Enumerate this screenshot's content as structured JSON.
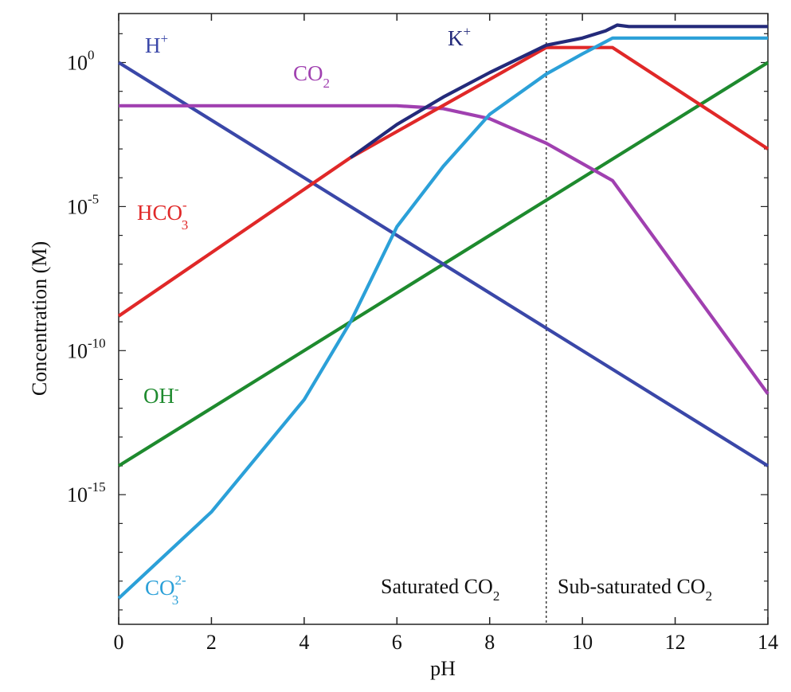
{
  "chart_data": {
    "type": "line",
    "title": "",
    "xlabel": "pH",
    "ylabel": "Concentration (M)",
    "xlim": [
      0,
      14
    ],
    "ylim_log10": [
      -19.5,
      1.7
    ],
    "y_scale": "log",
    "grid": false,
    "x_ticks": [
      0,
      2,
      4,
      6,
      8,
      10,
      12,
      14
    ],
    "x_tick_labels": [
      "0",
      "2",
      "4",
      "6",
      "8",
      "10",
      "12",
      "14"
    ],
    "y_ticks": [
      {
        "exp": 0,
        "base": "10",
        "sup": "0"
      },
      {
        "exp": -5,
        "base": "10",
        "sup": "-5"
      },
      {
        "exp": -10,
        "base": "10",
        "sup": "-10"
      },
      {
        "exp": -15,
        "base": "10",
        "sup": "-15"
      }
    ],
    "divider_pH": 9.22,
    "regions": [
      {
        "base": "Saturated CO",
        "sub": "2"
      },
      {
        "base": "Sub-saturated CO",
        "sub": "2"
      }
    ],
    "series": [
      {
        "key": "OH",
        "color": "#1e8a2e",
        "label": {
          "base": "OH",
          "sup": "-",
          "sub": ""
        },
        "points": [
          [
            0,
            -14
          ],
          [
            14,
            0
          ]
        ]
      },
      {
        "key": "H",
        "color": "#3a47a8",
        "label": {
          "base": "H",
          "sup": "+",
          "sub": ""
        },
        "points": [
          [
            0,
            0
          ],
          [
            14,
            -14
          ]
        ]
      },
      {
        "key": "CO2",
        "color": "#a040b0",
        "label": {
          "base": "CO",
          "sup": "",
          "sub": "2"
        },
        "points": [
          [
            0,
            -1.5
          ],
          [
            6,
            -1.5
          ],
          [
            7,
            -1.6
          ],
          [
            8,
            -1.95
          ],
          [
            9.22,
            -2.8
          ],
          [
            10.65,
            -4.1
          ],
          [
            14,
            -11.5
          ]
        ]
      },
      {
        "key": "HCO3",
        "color": "#e02828",
        "label": {
          "base": "HCO",
          "sup": "-",
          "sub": "3"
        },
        "points": [
          [
            0,
            -8.8
          ],
          [
            5,
            -3.3
          ],
          [
            9.22,
            0.52
          ],
          [
            10.65,
            0.52
          ],
          [
            14,
            -3.0
          ]
        ]
      },
      {
        "key": "CO3",
        "color": "#2ba0d8",
        "label": {
          "base": "CO",
          "sup": "2-",
          "sub": "3"
        },
        "points": [
          [
            0,
            -18.6
          ],
          [
            2,
            -15.6
          ],
          [
            4,
            -11.7
          ],
          [
            5,
            -9.0
          ],
          [
            6,
            -5.7
          ],
          [
            7,
            -3.6
          ],
          [
            8,
            -1.8
          ],
          [
            9.22,
            -0.4
          ],
          [
            10,
            0.3
          ],
          [
            10.65,
            0.85
          ],
          [
            14,
            0.85
          ]
        ]
      },
      {
        "key": "K",
        "color": "#232a7a",
        "label": {
          "base": "K",
          "sup": "+",
          "sub": ""
        },
        "points": [
          [
            5,
            -3.3
          ],
          [
            6,
            -2.15
          ],
          [
            7,
            -1.2
          ],
          [
            8,
            -0.35
          ],
          [
            9.22,
            0.6
          ],
          [
            10,
            0.85
          ],
          [
            10.5,
            1.1
          ],
          [
            10.75,
            1.3
          ],
          [
            11,
            1.25
          ],
          [
            14,
            1.25
          ]
        ]
      }
    ]
  }
}
